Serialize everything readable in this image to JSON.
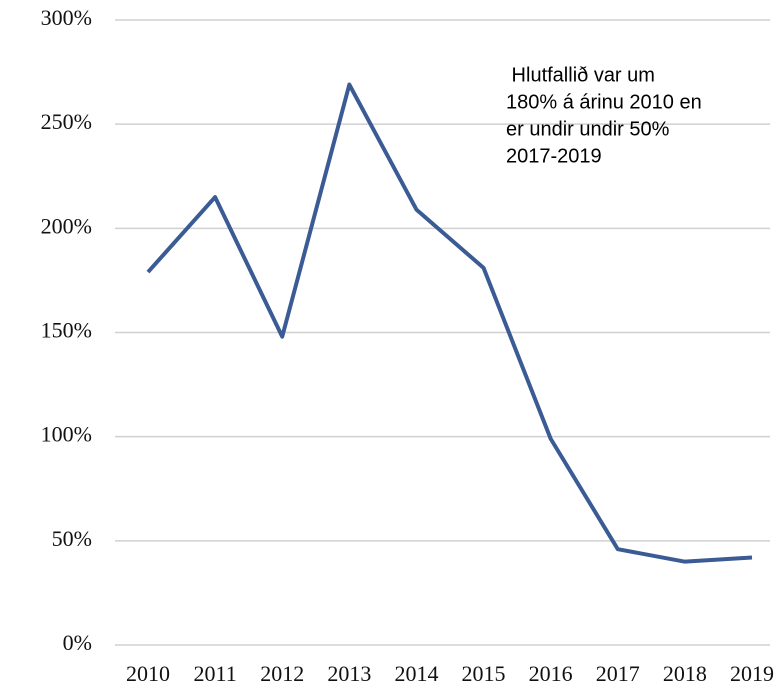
{
  "chart_data": {
    "type": "line",
    "categories": [
      "2010",
      "2011",
      "2012",
      "2013",
      "2014",
      "2015",
      "2016",
      "2017",
      "2018",
      "2019"
    ],
    "series": [
      {
        "color": "#3b5b95",
        "values": [
          179,
          215,
          148,
          269,
          209,
          181,
          99,
          46,
          40,
          42
        ]
      }
    ],
    "ylim": [
      0,
      300
    ],
    "yticks": [
      {
        "value": 0,
        "label": "0%"
      },
      {
        "value": 50,
        "label": "50%"
      },
      {
        "value": 100,
        "label": "100%"
      },
      {
        "value": 150,
        "label": "150%"
      },
      {
        "value": 200,
        "label": "200%"
      },
      {
        "value": 250,
        "label": "250%"
      },
      {
        "value": 300,
        "label": "300%"
      }
    ],
    "grid": true,
    "annotation": [
      " Hlutfallið var um",
      "180% á árinu 2010 en",
      "er undir undir 50%",
      "2017-2019"
    ]
  }
}
